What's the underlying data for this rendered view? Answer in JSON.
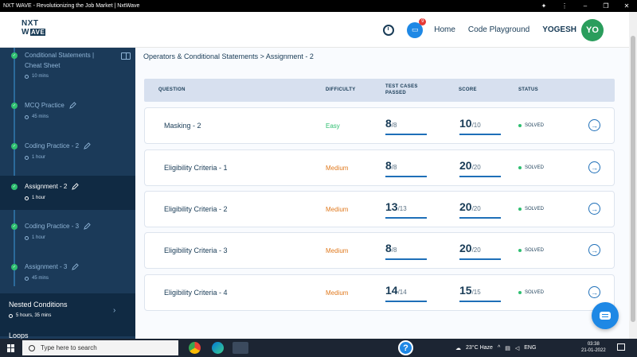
{
  "window": {
    "title": "NXT WAVE - Revolutionizing the Job Market | NxtWave"
  },
  "header": {
    "logo_top": "NXT",
    "logo_bottom_w": "W",
    "logo_bottom_box": "AVE",
    "chat_badge": "9",
    "nav": [
      "Home",
      "Code Playground"
    ],
    "username": "YOGESH",
    "avatar_initials": "YO"
  },
  "sidebar": {
    "items": [
      {
        "label": "Conditional Statements | Cheat Sheet",
        "duration": "10 mins"
      },
      {
        "label": "MCQ Practice",
        "duration": "45 mins"
      },
      {
        "label": "Coding Practice - 2",
        "duration": "1 hour"
      },
      {
        "label": "Assignment - 2",
        "duration": "1 hour"
      },
      {
        "label": "Coding Practice - 3",
        "duration": "1 hour"
      },
      {
        "label": "Assignment - 3",
        "duration": "45 mins"
      }
    ],
    "section": {
      "title": "Nested Conditions",
      "duration": "5 hours, 35 mins"
    },
    "next_section": "Loops"
  },
  "main": {
    "breadcrumb": "Operators & Conditional Statements > Assignment - 2",
    "columns": {
      "question": "QUESTION",
      "difficulty": "DIFFICULTY",
      "test_cases": "TEST CASES PASSED",
      "score": "SCORE",
      "status": "STATUS"
    },
    "rows": [
      {
        "question": "Masking - 2",
        "difficulty": "Easy",
        "tc_passed": "8",
        "tc_total": "/8",
        "tc_ratio": 1.0,
        "score": "10",
        "score_total": "/10",
        "score_ratio": 1.0,
        "status": "SOLVED"
      },
      {
        "question": "Eligibility Criteria - 1",
        "difficulty": "Medium",
        "tc_passed": "8",
        "tc_total": "/8",
        "tc_ratio": 1.0,
        "score": "20",
        "score_total": "/20",
        "score_ratio": 1.0,
        "status": "SOLVED"
      },
      {
        "question": "Eligibility Criteria - 2",
        "difficulty": "Medium",
        "tc_passed": "13",
        "tc_total": "/13",
        "tc_ratio": 1.0,
        "score": "20",
        "score_total": "/20",
        "score_ratio": 1.0,
        "status": "SOLVED"
      },
      {
        "question": "Eligibility Criteria - 3",
        "difficulty": "Medium",
        "tc_passed": "8",
        "tc_total": "/8",
        "tc_ratio": 1.0,
        "score": "20",
        "score_total": "/20",
        "score_ratio": 1.0,
        "status": "SOLVED"
      },
      {
        "question": "Eligibility Criteria - 4",
        "difficulty": "Medium",
        "tc_passed": "14",
        "tc_total": "/14",
        "tc_ratio": 1.0,
        "score": "15",
        "score_total": "/15",
        "score_ratio": 1.0,
        "status": "SOLVED"
      }
    ]
  },
  "taskbar": {
    "search_placeholder": "Type here to search",
    "weather": "23°C  Haze",
    "language": "ENG",
    "time": "03:38",
    "date": "21-01-2022"
  },
  "colors": {
    "sidebar_bg": "#1b3a59",
    "accent_blue": "#1e6fb8",
    "easy": "#2fbf71",
    "medium": "#e07a1f",
    "avatar": "#2a9d5c"
  }
}
